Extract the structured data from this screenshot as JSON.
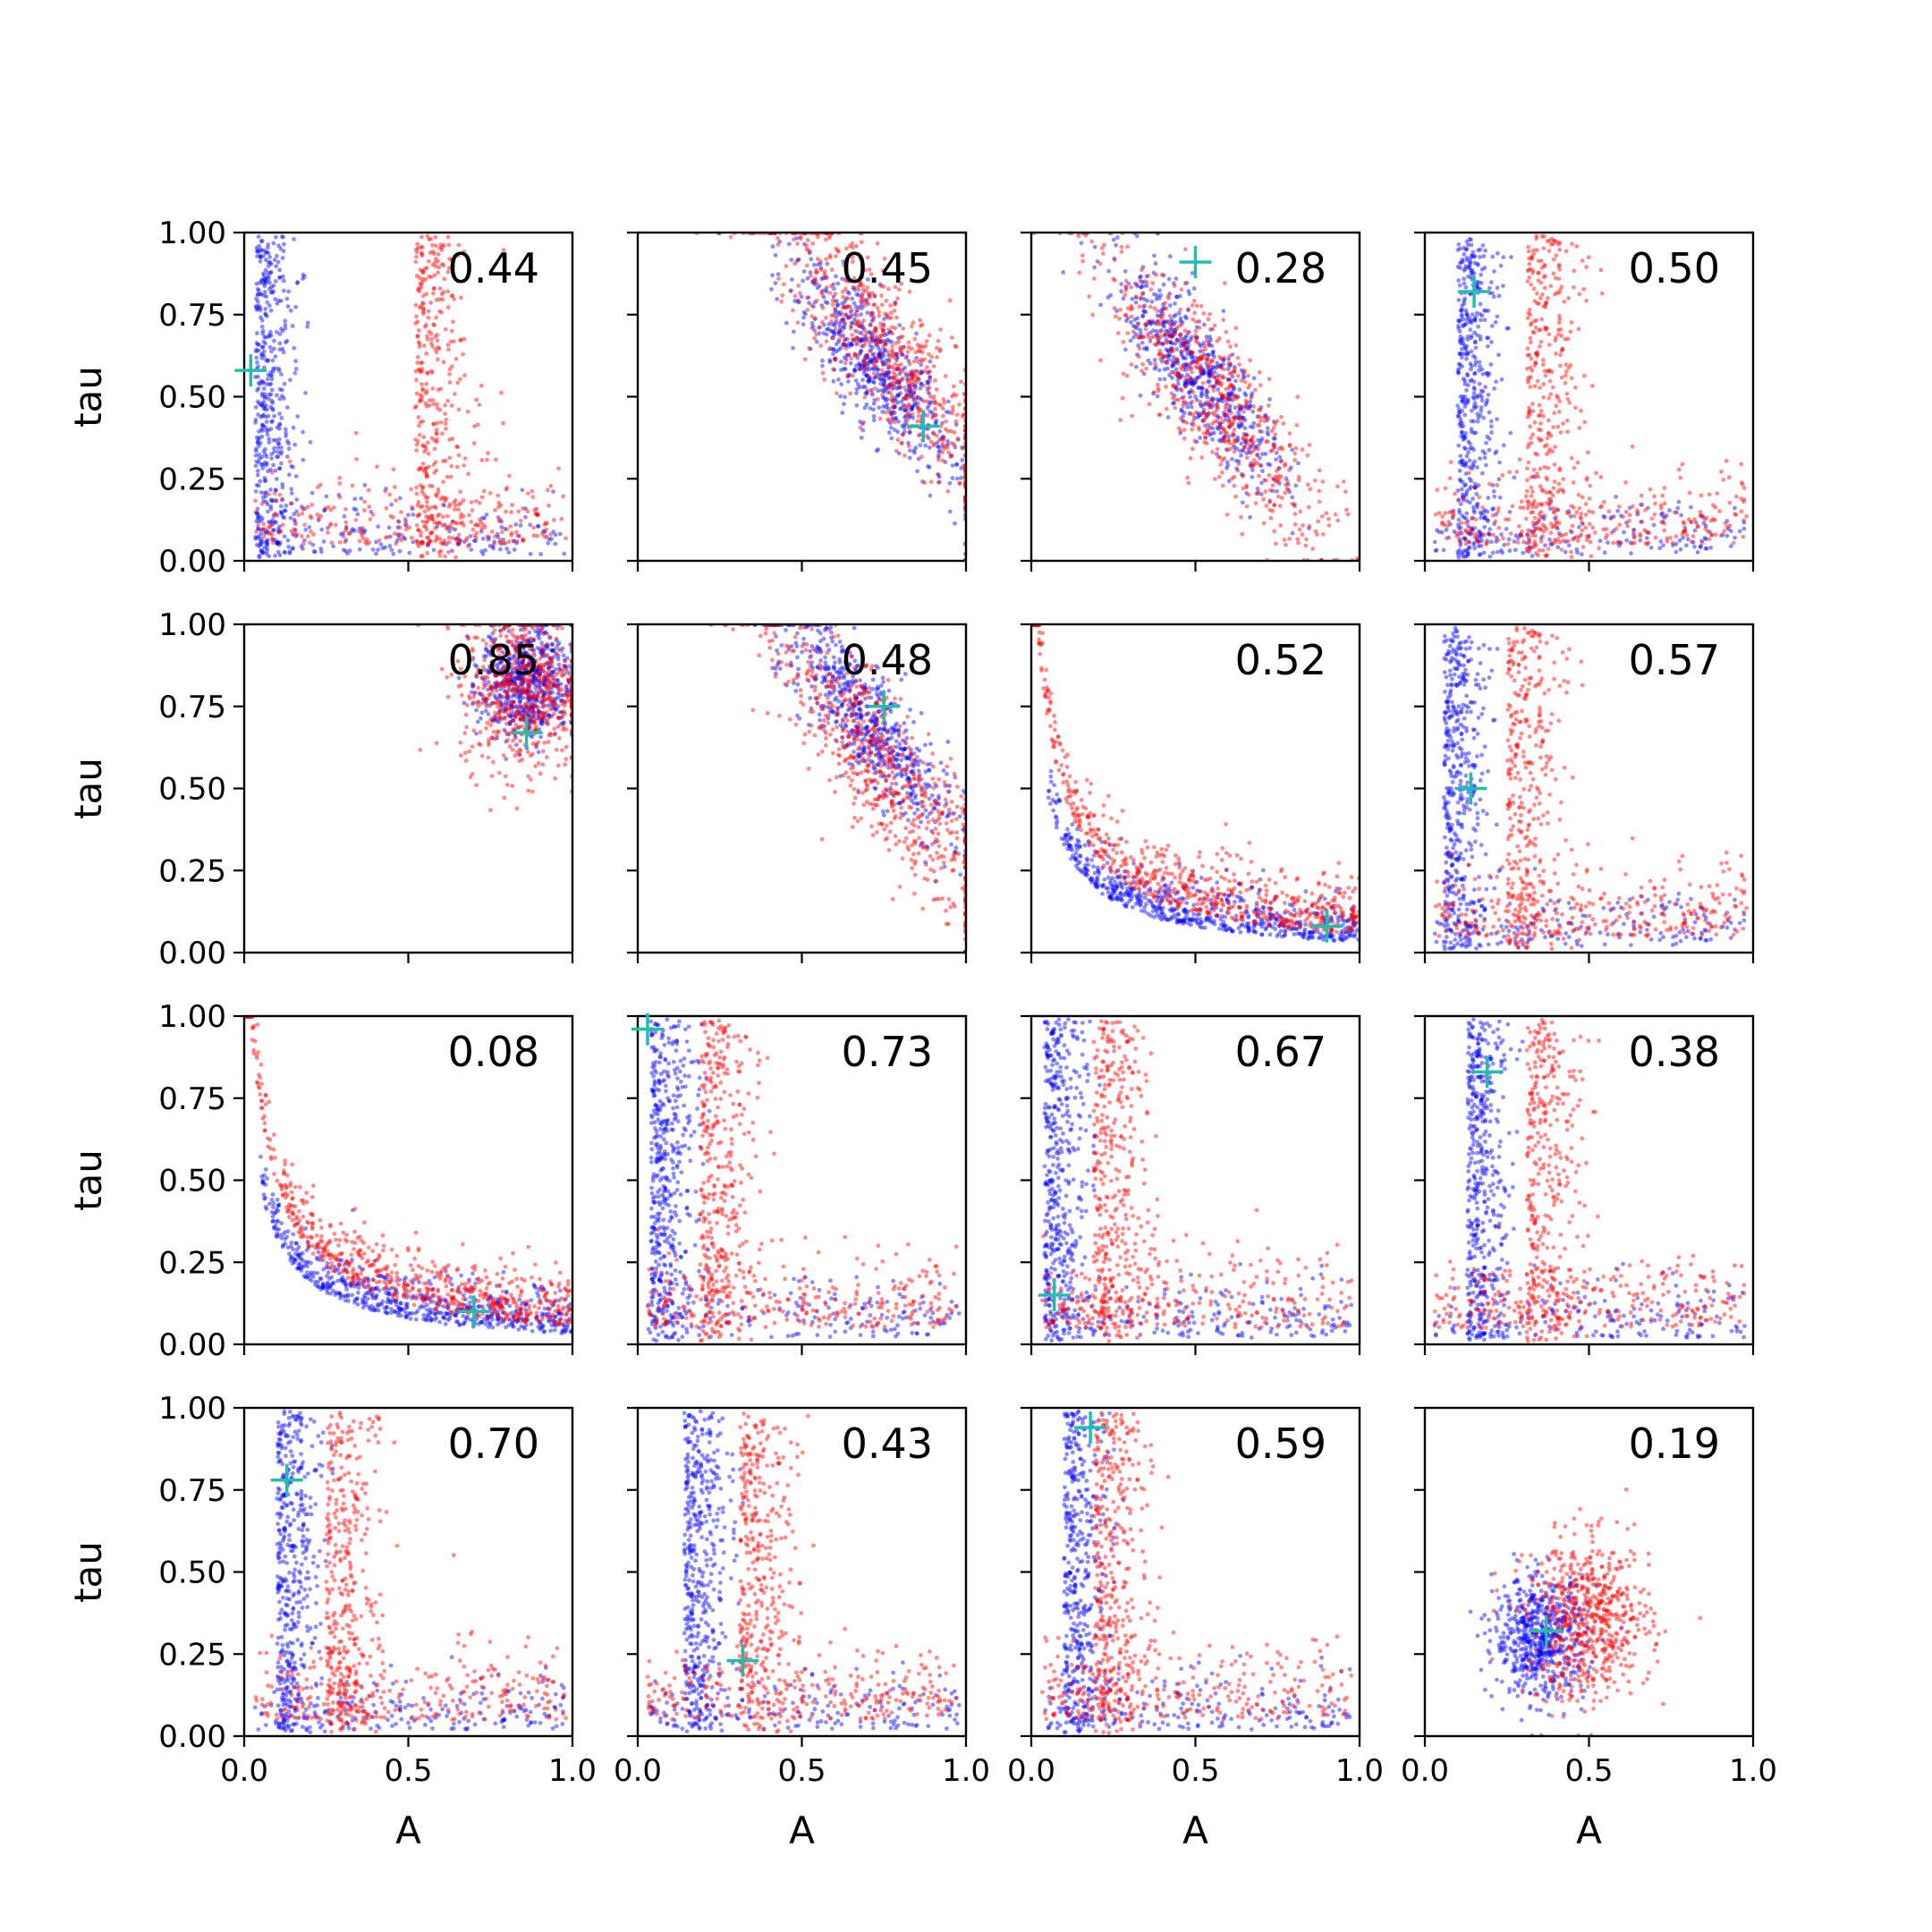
{
  "chart_data": {
    "type": "scatter",
    "grid": false,
    "layout_grid": "4x4",
    "xlabel": "A",
    "ylabel": "tau",
    "xlim": [
      0,
      1
    ],
    "ylim": [
      0,
      1
    ],
    "x_ticks": [
      "0.0",
      "0.5",
      "1.0"
    ],
    "y_ticks": [
      "0.00",
      "0.25",
      "0.50",
      "0.75",
      "1.00"
    ],
    "series_colors": {
      "blue": "#0000ff",
      "red": "#ff0000",
      "marker": "#1fbfb0"
    },
    "panels": [
      {
        "value": "0.44",
        "marker": [
          0.02,
          0.58
        ],
        "shape": "L-corner",
        "blue_center": [
          0.04,
          0.05
        ],
        "red_center": [
          0.85,
          0.1
        ]
      },
      {
        "value": "0.45",
        "marker": [
          0.87,
          0.41
        ],
        "shape": "diagonal",
        "blue_center": [
          0.72,
          0.6
        ],
        "red_center": [
          0.75,
          0.65
        ]
      },
      {
        "value": "0.28",
        "marker": [
          0.5,
          0.91
        ],
        "shape": "diagonal",
        "blue_center": [
          0.5,
          0.58
        ],
        "red_center": [
          0.55,
          0.5
        ]
      },
      {
        "value": "0.50",
        "marker": [
          0.15,
          0.82
        ],
        "shape": "L-corner",
        "blue_center": [
          0.15,
          0.55
        ],
        "red_center": [
          0.5,
          0.2
        ]
      },
      {
        "value": "0.85",
        "marker": [
          0.86,
          0.67
        ],
        "shape": "cluster",
        "blue_center": [
          0.86,
          0.82
        ],
        "red_center": [
          0.85,
          0.8
        ]
      },
      {
        "value": "0.48",
        "marker": [
          0.75,
          0.75
        ],
        "shape": "diagonal",
        "blue_center": [
          0.7,
          0.7
        ],
        "red_center": [
          0.75,
          0.55
        ]
      },
      {
        "value": "0.52",
        "marker": [
          0.9,
          0.08
        ],
        "shape": "L-curve",
        "blue_center": [
          0.5,
          0.15
        ],
        "red_center": [
          0.4,
          0.2
        ]
      },
      {
        "value": "0.57",
        "marker": [
          0.14,
          0.5
        ],
        "shape": "L-corner",
        "blue_center": [
          0.08,
          0.45
        ],
        "red_center": [
          0.4,
          0.2
        ]
      },
      {
        "value": "0.08",
        "marker": [
          0.7,
          0.1
        ],
        "shape": "L-curve",
        "blue_center": [
          0.6,
          0.1
        ],
        "red_center": [
          0.3,
          0.4
        ]
      },
      {
        "value": "0.73",
        "marker": [
          0.03,
          0.96
        ],
        "shape": "L-corner",
        "blue_center": [
          0.05,
          0.4
        ],
        "red_center": [
          0.3,
          0.15
        ]
      },
      {
        "value": "0.67",
        "marker": [
          0.07,
          0.15
        ],
        "shape": "L-corner",
        "blue_center": [
          0.05,
          0.5
        ],
        "red_center": [
          0.3,
          0.2
        ]
      },
      {
        "value": "0.38",
        "marker": [
          0.19,
          0.83
        ],
        "shape": "L-corner",
        "blue_center": [
          0.2,
          0.7
        ],
        "red_center": [
          0.5,
          0.2
        ]
      },
      {
        "value": "0.70",
        "marker": [
          0.13,
          0.78
        ],
        "shape": "L-corner",
        "blue_center": [
          0.15,
          0.5
        ],
        "red_center": [
          0.4,
          0.2
        ]
      },
      {
        "value": "0.43",
        "marker": [
          0.32,
          0.23
        ],
        "shape": "L-corner",
        "blue_center": [
          0.22,
          0.6
        ],
        "red_center": [
          0.5,
          0.2
        ]
      },
      {
        "value": "0.59",
        "marker": [
          0.18,
          0.94
        ],
        "shape": "L-corner",
        "blue_center": [
          0.15,
          0.5
        ],
        "red_center": [
          0.3,
          0.15
        ]
      },
      {
        "value": "0.19",
        "marker": [
          0.37,
          0.32
        ],
        "shape": "cluster",
        "blue_center": [
          0.35,
          0.3
        ],
        "red_center": [
          0.5,
          0.35
        ]
      }
    ]
  }
}
